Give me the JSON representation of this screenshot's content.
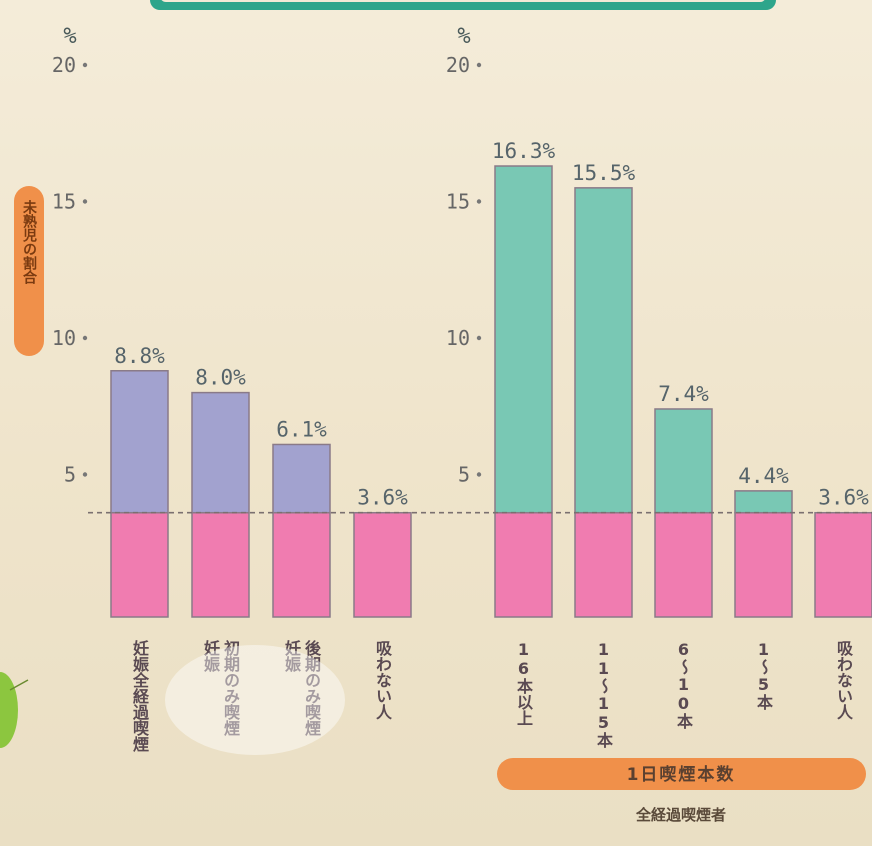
{
  "chart_data": [
    {
      "type": "bar",
      "ylabel": "未熟児の割合",
      "yunit": "%",
      "ylim": [
        0,
        20
      ],
      "yticks": [
        5,
        10,
        15,
        20
      ],
      "baseline_value": 3.6,
      "categories": [
        "妊娠全経過喫煙",
        "妊娠初期のみ喫煙",
        "妊娠後期のみ喫煙",
        "吸わない人"
      ],
      "category_label_lines": [
        [
          "妊娠全経過喫煙"
        ],
        [
          "妊娠",
          "初期のみ喫煙"
        ],
        [
          "妊娠",
          "後期のみ喫煙"
        ],
        [
          "吸わない人"
        ]
      ],
      "values": [
        8.8,
        8.0,
        6.1,
        3.6
      ],
      "data_labels": [
        "8.8%",
        "8.0%",
        "6.1%",
        "3.6%"
      ]
    },
    {
      "type": "bar",
      "yunit": "%",
      "ylim": [
        0,
        20
      ],
      "yticks": [
        5,
        10,
        15,
        20
      ],
      "baseline_value": 3.6,
      "categories": [
        "16本以上",
        "11〜15本",
        "6〜10本",
        "1〜5本",
        "吸わない人"
      ],
      "category_label_lines": [
        [
          "16本以上"
        ],
        [
          "11〜15本"
        ],
        [
          "6〜10本"
        ],
        [
          "1〜5本"
        ],
        [
          "吸わない人"
        ]
      ],
      "values": [
        16.3,
        15.5,
        7.4,
        4.4,
        3.6
      ],
      "data_labels": [
        "16.3%",
        "15.5%",
        "7.4%",
        "4.4%",
        "3.6%"
      ],
      "group_label": "1日喫煙本数",
      "sub_label": "全経過喫煙者"
    }
  ],
  "colors": {
    "baseline_fill": "#f07cb0",
    "excess_left": "#a2a2cf",
    "excess_right": "#79c8b4",
    "bar_stroke": "#8a7a88",
    "label_pill": "#f0904a",
    "dashed_line": "#7a7070"
  }
}
